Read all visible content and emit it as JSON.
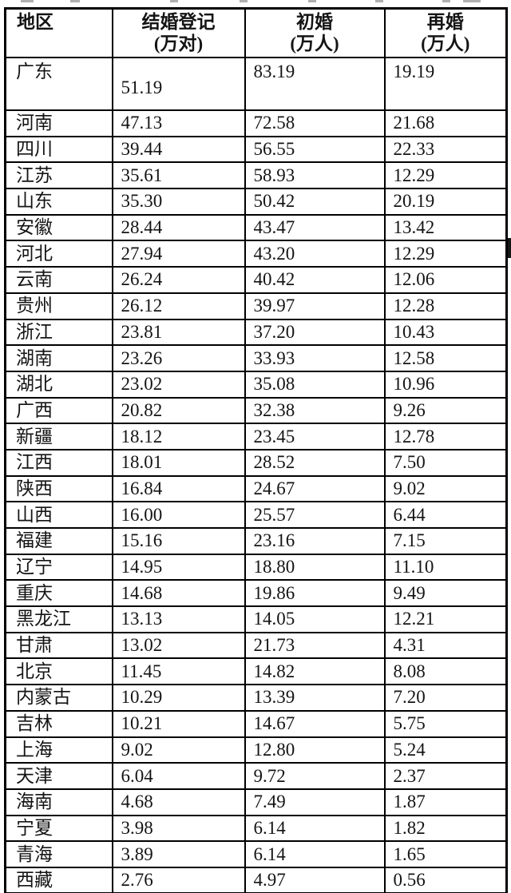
{
  "colors": {
    "border": "#000000",
    "text": "#141414",
    "background": "#ffffff",
    "artifact": "#8f8f8f",
    "edge_bar": "#161616"
  },
  "chart_data": {
    "type": "table",
    "title": "",
    "columns": [
      {
        "label": "地区",
        "unit": ""
      },
      {
        "label": "结婚登记",
        "unit": "(万对)"
      },
      {
        "label": "初婚",
        "unit": "(万人)"
      },
      {
        "label": "再婚",
        "unit": "(万人)"
      }
    ],
    "rows": [
      [
        "广东",
        "51.19",
        "83.19",
        "19.19"
      ],
      [
        "河南",
        "47.13",
        "72.58",
        "21.68"
      ],
      [
        "四川",
        "39.44",
        "56.55",
        "22.33"
      ],
      [
        "江苏",
        "35.61",
        "58.93",
        "12.29"
      ],
      [
        "山东",
        "35.30",
        "50.42",
        "20.19"
      ],
      [
        "安徽",
        "28.44",
        "43.47",
        "13.42"
      ],
      [
        "河北",
        "27.94",
        "43.20",
        "12.29"
      ],
      [
        "云南",
        "26.24",
        "40.42",
        "12.06"
      ],
      [
        "贵州",
        "26.12",
        "39.97",
        "12.28"
      ],
      [
        "浙江",
        "23.81",
        "37.20",
        "10.43"
      ],
      [
        "湖南",
        "23.26",
        "33.93",
        "12.58"
      ],
      [
        "湖北",
        "23.02",
        "35.08",
        "10.96"
      ],
      [
        "广西",
        "20.82",
        "32.38",
        "9.26"
      ],
      [
        "新疆",
        "18.12",
        "23.45",
        "12.78"
      ],
      [
        "江西",
        "18.01",
        "28.52",
        "7.50"
      ],
      [
        "陕西",
        "16.84",
        "24.67",
        "9.02"
      ],
      [
        "山西",
        "16.00",
        "25.57",
        "6.44"
      ],
      [
        "福建",
        "15.16",
        "23.16",
        "7.15"
      ],
      [
        "辽宁",
        "14.95",
        "18.80",
        "11.10"
      ],
      [
        "重庆",
        "14.68",
        "19.86",
        "9.49"
      ],
      [
        "黑龙江",
        "13.13",
        "14.05",
        "12.21"
      ],
      [
        "甘肃",
        "13.02",
        "21.73",
        "4.31"
      ],
      [
        "北京",
        "11.45",
        "14.82",
        "8.08"
      ],
      [
        "内蒙古",
        "10.29",
        "13.39",
        "7.20"
      ],
      [
        "吉林",
        "10.21",
        "14.67",
        "5.75"
      ],
      [
        "上海",
        "9.02",
        "12.80",
        "5.24"
      ],
      [
        "天津",
        "6.04",
        "9.72",
        "2.37"
      ],
      [
        "海南",
        "4.68",
        "7.49",
        "1.87"
      ],
      [
        "宁夏",
        "3.98",
        "6.14",
        "1.82"
      ],
      [
        "青海",
        "3.89",
        "6.14",
        "1.65"
      ],
      [
        "西藏",
        "2.76",
        "4.97",
        "0.56"
      ]
    ]
  }
}
